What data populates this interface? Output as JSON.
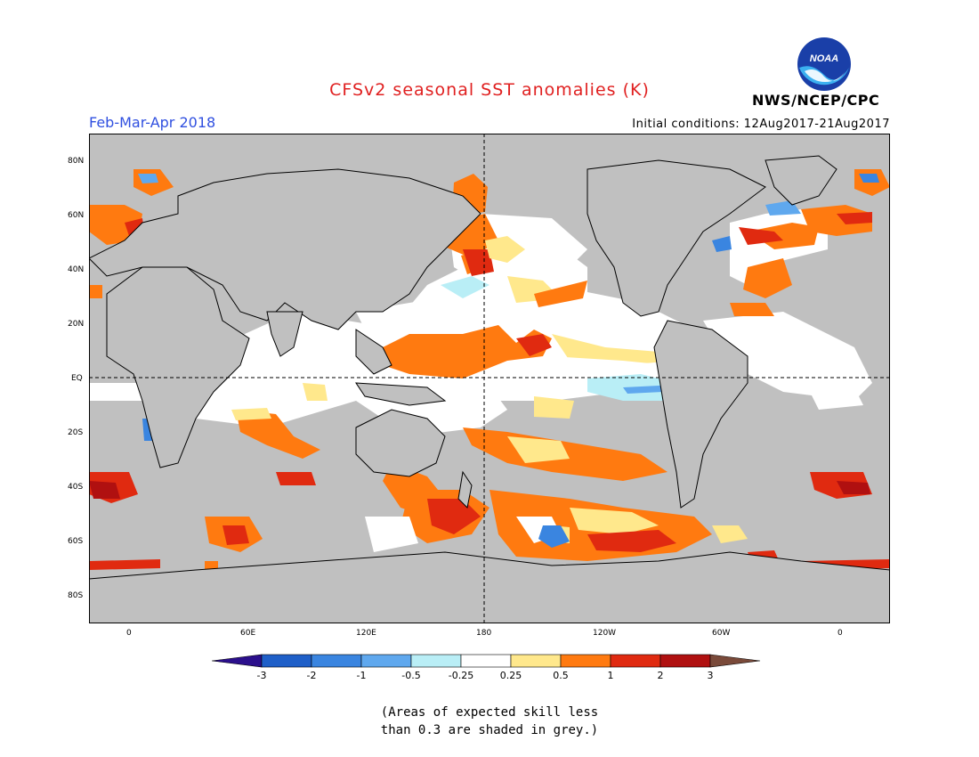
{
  "header": {
    "title": "CFSv2 seasonal SST anomalies (K)",
    "period": "Feb-Mar-Apr 2018",
    "initial_conditions": "Initial conditions: 12Aug2017-21Aug2017",
    "agency": "NWS/NCEP/CPC",
    "logo_text": "NOAA"
  },
  "map": {
    "lat_labels": [
      "80N",
      "60N",
      "40N",
      "20N",
      "EQ",
      "20S",
      "40S",
      "60S",
      "80S"
    ],
    "lon_labels": [
      "0",
      "60E",
      "120E",
      "180",
      "120W",
      "60W",
      "0"
    ],
    "grey_meaning": "skill < 0.3"
  },
  "colorbar": {
    "labels": [
      "-3",
      "-2",
      "-1",
      "-0.5",
      "-0.25",
      "0.25",
      "0.5",
      "1",
      "2",
      "3"
    ],
    "colors": [
      "#2b0f8c",
      "#1f5fc8",
      "#3a85e0",
      "#5fa8ee",
      "#b9eef6",
      "#ffffff",
      "#ffe88c",
      "#ff7a10",
      "#e02a10",
      "#b01010",
      "#7a4a3a"
    ]
  },
  "note": {
    "line1": "(Areas of expected skill less",
    "line2": "than 0.3 are shaded in grey.)"
  }
}
